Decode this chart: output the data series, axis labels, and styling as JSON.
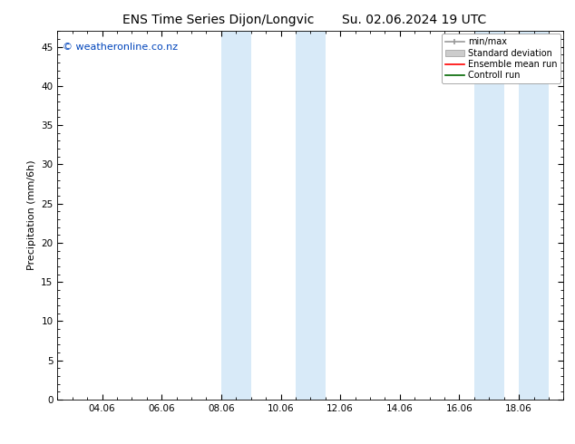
{
  "title_left": "ENS Time Series Dijon/Longvic",
  "title_right": "Su. 02.06.2024 19 UTC",
  "ylabel": "Precipitation (mm/6h)",
  "watermark": "© weatheronline.co.nz",
  "watermark_color": "#0044bb",
  "background_color": "#ffffff",
  "plot_bg_color": "#ffffff",
  "ylim": [
    0,
    47
  ],
  "yticks": [
    0,
    5,
    10,
    15,
    20,
    25,
    30,
    35,
    40,
    45
  ],
  "xtick_labels": [
    "04.06",
    "06.06",
    "08.06",
    "10.06",
    "12.06",
    "14.06",
    "16.06",
    "18.06"
  ],
  "xtick_positions": [
    2,
    4,
    6,
    8,
    10,
    12,
    14,
    16
  ],
  "xlim": [
    0.5,
    17.5
  ],
  "shaded_regions": [
    [
      6.0,
      7.0
    ],
    [
      8.5,
      9.5
    ],
    [
      14.5,
      15.5
    ],
    [
      16.0,
      17.0
    ]
  ],
  "shade_color": "#d8eaf8",
  "shade_alpha": 1.0,
  "legend_labels": [
    "min/max",
    "Standard deviation",
    "Ensemble mean run",
    "Controll run"
  ],
  "legend_colors": [
    "#999999",
    "#cccccc",
    "#ff0000",
    "#006600"
  ],
  "title_fontsize": 10,
  "axis_fontsize": 8,
  "tick_fontsize": 7.5,
  "watermark_fontsize": 8,
  "legend_fontsize": 7
}
